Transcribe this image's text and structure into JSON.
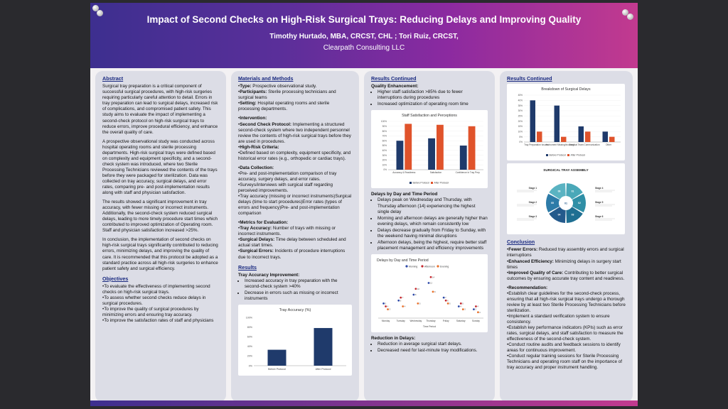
{
  "header": {
    "title": "Impact of Second Checks on High-Risk Surgical Trays: Reducing Delays and Improving Quality",
    "authors": "Timothy Hurtado, MBA, CRCST, CHL ; Tori Ruiz, CRCST,",
    "org": "Clearpath Consulting LLC"
  },
  "abstract": {
    "heading": "Abstract",
    "p1": "Surgical tray preparation is a critical component of successful surgical procedures, with high-risk surgeries requiring particularly careful attention to detail. Errors in tray preparation can lead to surgical delays, increased risk of complications, and compromised patient safety. This study aims to evaluate the impact of implementing a second-check protocol on high-risk surgical trays to reduce errors, improve procedural efficiency, and enhance the overall quality of care.",
    "p2": "A prospective observational study was conducted across hospital operating rooms and sterile processing departments. High-risk surgical trays were defined based on complexity and equipment specificity, and a second-check system was introduced, where two Sterile Processing Technicians reviewed the contents of the trays before they were packaged for sterilization. Data was collected on tray accuracy, surgical delays, and error rates, comparing pre- and post-implementation results along with staff and physician satisfaction.",
    "p3": "The results showed a significant improvement in tray accuracy, with fewer missing or incorrect instruments. Additionally, the second-check system reduced surgical delays, leading to more timely procedure start times which contributed to improved optimization of Operating room. Staff and physician satisfaction increased >25%.",
    "p4": "In conclusion, the implementation of second checks on high-risk surgical trays significantly contributed to reducing errors, minimizing delays, and improving the quality of care. It is recommended that this protocol be adopted as a standard practice across all high-risk surgeries to enhance patient safety and surgical efficiency."
  },
  "objectives": {
    "heading": "Objectives",
    "items": [
      "To evaluate the effectiveness of implementing second checks on high-risk surgical trays.",
      "To assess whether second checks reduce delays in surgical procedures.",
      "To improve the quality of surgical procedures by minimizing errors and ensuring tray accuracy.",
      "To improve the satisfaction rates of staff and physicians"
    ]
  },
  "methods": {
    "heading": "Materials and Methods",
    "type_label": "Type:",
    "type_text": " Prospective observational study.",
    "participants_label": "Participants:",
    "participants_text": " Sterile processing technicians and surgical teams",
    "setting_label": "Setting:",
    "setting_text": " Hospital operating rooms and sterile processing departments.",
    "intervention_label": "Intervention:",
    "scp_label": "Second Check Protocol:",
    "scp_text": " Implementing a structured second-check system where two independent personnel review the contents of high-risk surgical trays before they are used in procedures.",
    "hrc_label": "High-Risk Criteria:",
    "hrc_text": "Defined based on complexity, equipment specificity, and historical error rates (e.g., orthopedic or cardiac trays).",
    "dc_label": "Data Collection:",
    "dc1": "Pre- and post-implementation comparison of tray accuracy, surgery delays, and error rates.",
    "dc2": "Surveys/interviews with surgical staff regarding perceived improvements.",
    "dc3": "Tray accuracy (missing or incorrect instruments)Surgical delays (time to start procedures)Error rates (types of errors and frequency)Pre- and post-implementation comparison",
    "me_label": "Metrics for Evaluation:",
    "ta_label": "Tray Accuracy:",
    "ta_text": " Number of trays with missing or incorrect instruments.",
    "sd_label": "Surgical Delays:",
    "sd_text": " Time delay between scheduled and actual start times.",
    "se_label": "Surgical Errors:",
    "se_text": " Incidents of procedure interruptions due to incorrect trays."
  },
  "results": {
    "heading": "Results",
    "tai_label": "Tray Accuracy Improvement:",
    "items": [
      "Increased accuracy in tray preparation with the second-check system >40%",
      "Decrease in errors such as missing or incorrect instruments"
    ]
  },
  "results2": {
    "heading": "Results Continued",
    "qe_label": "Quality Enhancement:",
    "qe_items": [
      "Higher staff satisfaction >85% due to fewer interruptions during procedures",
      "Increased optimization of operating room time"
    ],
    "dbd_label": "Delays by Day and Time Period",
    "dbd_items": [
      "Delays peak on Wednesday and Thursday, with Thursday afternoon (14) experiencing the highest single delay",
      "Morning and afternoon delays are generally higher than evening delays, which remain consistently low",
      "Delays decrease gradually from Friday to Sunday, with the weekend having minimal disruptions",
      "Afternoon delays, being the highest, require better staff placement management and efficiency improvements"
    ],
    "rid_label": "Reduction in Delays:",
    "rid_items": [
      "Reduction in average surgical start delays.",
      "Decreased need for last-minute tray modifications."
    ]
  },
  "results3": {
    "heading": "Results Continued",
    "assembly_title": "SURGICAL TRAY ASSEMBLY",
    "assembly_center": "01",
    "stage_labels": [
      "Stage 1",
      "Stage 2",
      "Stage 3",
      "Stage 4",
      "Stage 5",
      "Stage 6"
    ],
    "segment_labels": [
      "01",
      "02",
      "03",
      "04",
      "05",
      "06"
    ]
  },
  "conclusion": {
    "heading": "Conclusion",
    "fe_label": "Fewer Errors:",
    "fe_text": " Reduced tray assembly errors and surgical interruptions",
    "ee_label": "Enhanced Efficiency:",
    "ee_text": " Minimizing delays in surgery start times",
    "iq_label": "Improved Quality of Care:",
    "iq_text": " Contributing to better surgical outcomes by ensuring accurate tray content and readiness.",
    "rec_label": "Recommendation:",
    "rec_items": [
      "Establish clear guidelines for the second-check process, ensuring that all high-risk surgical trays undergo a thorough review by at least two Sterile Processing Technicians before sterilization.",
      "Implement a standard verification system to ensure consistency.",
      "Establish key performance indicators (KPIs) such as error rates, surgical delays, and staff satisfaction to measure the effectiveness of the second-check system.",
      "Conduct routine audits and feedback sessions to identify areas for continuous improvement.",
      "Conduct regular training sessions for Sterile Processing Technicians and operating room staff on the importance of tray accuracy and proper instrument handling."
    ]
  },
  "colors": {
    "before": "#1f3a6b",
    "after": "#e0532b",
    "morning": "#2e4aa8",
    "afternoon": "#c4282e",
    "evening": "#e8702a",
    "header_start": "#3d2f8f",
    "header_end": "#c23a8f",
    "heading": "#1a2a80"
  },
  "chart_data": [
    {
      "type": "bar",
      "title": "Tray Accuracy (%)",
      "categories": [
        "Before Protocol",
        "After Protocol"
      ],
      "values": [
        33,
        78
      ],
      "ylim": [
        0,
        100
      ],
      "yticks": [
        "0%",
        "20%",
        "40%",
        "60%",
        "80%",
        "100%"
      ],
      "grid": false
    },
    {
      "type": "bar",
      "title": "Staff Satisfaction and Perceptions",
      "categories": [
        "Accuracy & Readiness",
        "Satisfaction",
        "Confidence in Tray Prep"
      ],
      "series": [
        {
          "name": "Before Protocol",
          "values": [
            60,
            65,
            50
          ]
        },
        {
          "name": "After Protocol",
          "values": [
            95,
            93,
            90
          ]
        }
      ],
      "ylim": [
        0,
        100
      ],
      "yticks": [
        "0%",
        "10%",
        "20%",
        "30%",
        "40%",
        "50%",
        "60%",
        "70%",
        "80%",
        "90%",
        "100%"
      ],
      "legend": "bottom"
    },
    {
      "type": "scatter",
      "title": "Delays by Day and Time Period",
      "xlabel": "Time Period",
      "categories": [
        "Monday",
        "Tuesday",
        "Wednesday",
        "Thursday",
        "Friday",
        "Saturday",
        "Sunday"
      ],
      "series": [
        {
          "name": "Morning",
          "values": [
            5,
            6,
            8,
            12,
            7,
            4,
            3
          ]
        },
        {
          "name": "Afternoon",
          "values": [
            4,
            7,
            10,
            14,
            6,
            5,
            4
          ]
        },
        {
          "name": "Evening",
          "values": [
            3,
            4,
            5,
            9,
            5,
            3,
            2
          ]
        }
      ],
      "ylim": [
        0,
        16
      ],
      "legend": "top"
    },
    {
      "type": "bar",
      "title": "Breakdown of Surgical Delays",
      "categories": [
        "Tray Preparation Issues",
        "Instrument Missing/Incorrect",
        "Surgical Team Communication",
        "Other"
      ],
      "series": [
        {
          "name": "Before Protocol",
          "values": [
            40,
            35,
            15,
            10
          ]
        },
        {
          "name": "After Protocol",
          "values": [
            10,
            5,
            10,
            5
          ]
        }
      ],
      "ylim": [
        0,
        45
      ],
      "yticks": [
        "0%",
        "5%",
        "10%",
        "15%",
        "20%",
        "25%",
        "30%",
        "35%",
        "40%",
        "45%"
      ],
      "legend": "bottom"
    }
  ]
}
